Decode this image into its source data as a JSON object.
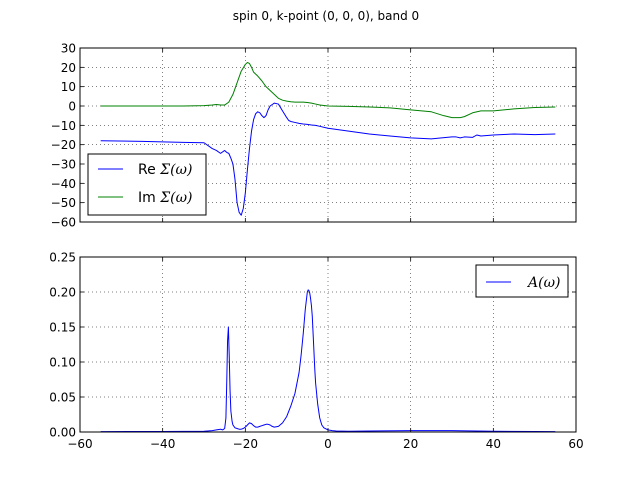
{
  "suptitle": "spin 0, k-point (0, 0, 0), band 0",
  "colors": {
    "re": "#0000ff",
    "im": "#008000",
    "a": "#0000ff",
    "grid": "#000000"
  },
  "chart_data": [
    {
      "type": "line",
      "title": "",
      "xlabel": "",
      "ylabel": "",
      "xlim": [
        -60,
        60
      ],
      "ylim": [
        -60,
        30
      ],
      "xticks": [
        -60,
        -40,
        -20,
        0,
        20,
        40,
        60
      ],
      "xtick_labels_visible": false,
      "yticks": [
        30,
        20,
        10,
        0,
        -10,
        -20,
        -30,
        -40,
        -50,
        -60
      ],
      "ytick_labels": [
        "30",
        "20",
        "10",
        "0",
        "−10",
        "−20",
        "−30",
        "−40",
        "−50",
        "−60"
      ],
      "grid": true,
      "legend_position": "lower-left",
      "legend": [
        {
          "prefix": "Re ",
          "math": "Σ(ω)"
        },
        {
          "prefix": "Im ",
          "math": "Σ(ω)"
        }
      ],
      "series": [
        {
          "name": "Re Σ(ω)",
          "x": [
            -55,
            -45,
            -35,
            -30,
            -28,
            -27,
            -26,
            -25,
            -24.5,
            -24,
            -23.5,
            -23,
            -22.5,
            -22,
            -21.5,
            -21,
            -20.5,
            -20,
            -19.5,
            -19,
            -18.5,
            -18,
            -17.5,
            -17,
            -16.5,
            -16,
            -15.5,
            -15,
            -14.5,
            -14,
            -13,
            -12,
            -11,
            -10,
            -9.5,
            -9,
            -8,
            -7,
            -6,
            -5,
            -4,
            -3,
            -2,
            0,
            5,
            10,
            15,
            20,
            25,
            30,
            31,
            32,
            33,
            35,
            36,
            37,
            40,
            45,
            50,
            55
          ],
          "y": [
            -18,
            -18.3,
            -18.8,
            -19,
            -22,
            -23,
            -24.5,
            -23,
            -24,
            -24.5,
            -27,
            -30,
            -38,
            -50,
            -55,
            -56.5,
            -53,
            -45,
            -33,
            -22,
            -13,
            -7,
            -4,
            -3,
            -3.5,
            -5,
            -6,
            -5,
            -2,
            0,
            1.5,
            1,
            -2.5,
            -6,
            -7.5,
            -8,
            -8.5,
            -9,
            -9.3,
            -9.5,
            -9.8,
            -10,
            -10.5,
            -11.5,
            -13,
            -14.5,
            -15.5,
            -16.5,
            -17,
            -16,
            -16,
            -16.5,
            -16,
            -16.2,
            -15,
            -15.5,
            -15,
            -14.5,
            -14.8,
            -14.5
          ]
        },
        {
          "name": "Im Σ(ω)",
          "x": [
            -55,
            -45,
            -35,
            -30,
            -28,
            -27,
            -26,
            -25,
            -24,
            -23,
            -22,
            -21,
            -20,
            -19.5,
            -19,
            -18.5,
            -18,
            -17,
            -16,
            -15,
            -14,
            -13,
            -12,
            -11,
            -10,
            -9,
            -8,
            -7,
            -6,
            -5,
            -4,
            -3,
            -2,
            0,
            5,
            10,
            15,
            20,
            25,
            28,
            30,
            32,
            33,
            35,
            37,
            40,
            45,
            50,
            55
          ],
          "y": [
            0,
            0,
            0,
            0.2,
            0.5,
            0.8,
            0.5,
            0.5,
            2,
            6,
            12,
            18,
            21.5,
            22.5,
            22,
            20,
            17.5,
            15.5,
            13,
            10,
            8,
            6,
            4,
            3,
            2.5,
            2.2,
            2,
            2,
            2,
            1.8,
            1.5,
            1,
            0.5,
            0,
            -0.2,
            -0.5,
            -1,
            -2,
            -3,
            -5,
            -6,
            -6,
            -5.5,
            -3.5,
            -2.5,
            -2.5,
            -1.5,
            -0.8,
            -0.5
          ]
        }
      ]
    },
    {
      "type": "line",
      "title": "",
      "xlabel": "",
      "ylabel": "",
      "xlim": [
        -60,
        60
      ],
      "ylim": [
        0,
        0.25
      ],
      "xticks": [
        -60,
        -40,
        -20,
        0,
        20,
        40,
        60
      ],
      "xtick_labels": [
        "−60",
        "−40",
        "−20",
        "0",
        "20",
        "40",
        "60"
      ],
      "yticks": [
        0.25,
        0.2,
        0.15,
        0.1,
        0.05,
        0.0
      ],
      "ytick_labels": [
        "0.25",
        "0.20",
        "0.15",
        "0.10",
        "0.05",
        "0.00"
      ],
      "grid": true,
      "legend_position": "upper-right",
      "legend": [
        {
          "prefix": "",
          "math": "A(ω)"
        }
      ],
      "series": [
        {
          "name": "A(ω)",
          "x": [
            -55,
            -40,
            -30,
            -28,
            -27,
            -26,
            -25.5,
            -25,
            -24.7,
            -24.5,
            -24.3,
            -24.1,
            -23.9,
            -23.7,
            -23.5,
            -23.2,
            -23,
            -22.5,
            -22,
            -21.5,
            -21,
            -20.5,
            -20,
            -19.5,
            -19,
            -18.5,
            -18,
            -17.5,
            -17,
            -16.5,
            -16,
            -15.5,
            -15,
            -14.5,
            -14,
            -13.5,
            -13,
            -12,
            -11,
            -10,
            -9,
            -8,
            -7,
            -6.5,
            -6,
            -5.5,
            -5,
            -4.8,
            -4.6,
            -4.4,
            -4.2,
            -4,
            -3.8,
            -3.6,
            -3.4,
            -3.2,
            -3,
            -2.5,
            -2,
            -1.5,
            -1,
            0,
            1,
            2,
            5,
            10,
            20,
            30,
            40,
            50,
            55
          ],
          "y": [
            0.0005,
            0.0008,
            0.001,
            0.002,
            0.003,
            0.004,
            0.003,
            0.005,
            0.02,
            0.07,
            0.13,
            0.15,
            0.11,
            0.06,
            0.03,
            0.015,
            0.01,
            0.006,
            0.005,
            0.004,
            0.004,
            0.005,
            0.007,
            0.01,
            0.013,
            0.012,
            0.009,
            0.007,
            0.007,
            0.008,
            0.009,
            0.01,
            0.011,
            0.011,
            0.01,
            0.008,
            0.007,
            0.008,
            0.013,
            0.022,
            0.037,
            0.055,
            0.085,
            0.11,
            0.14,
            0.175,
            0.2,
            0.203,
            0.202,
            0.198,
            0.19,
            0.18,
            0.165,
            0.14,
            0.115,
            0.09,
            0.07,
            0.04,
            0.02,
            0.01,
            0.006,
            0.003,
            0.002,
            0.0015,
            0.001,
            0.0015,
            0.002,
            0.002,
            0.001,
            0.0008,
            0.0006
          ]
        }
      ]
    }
  ]
}
